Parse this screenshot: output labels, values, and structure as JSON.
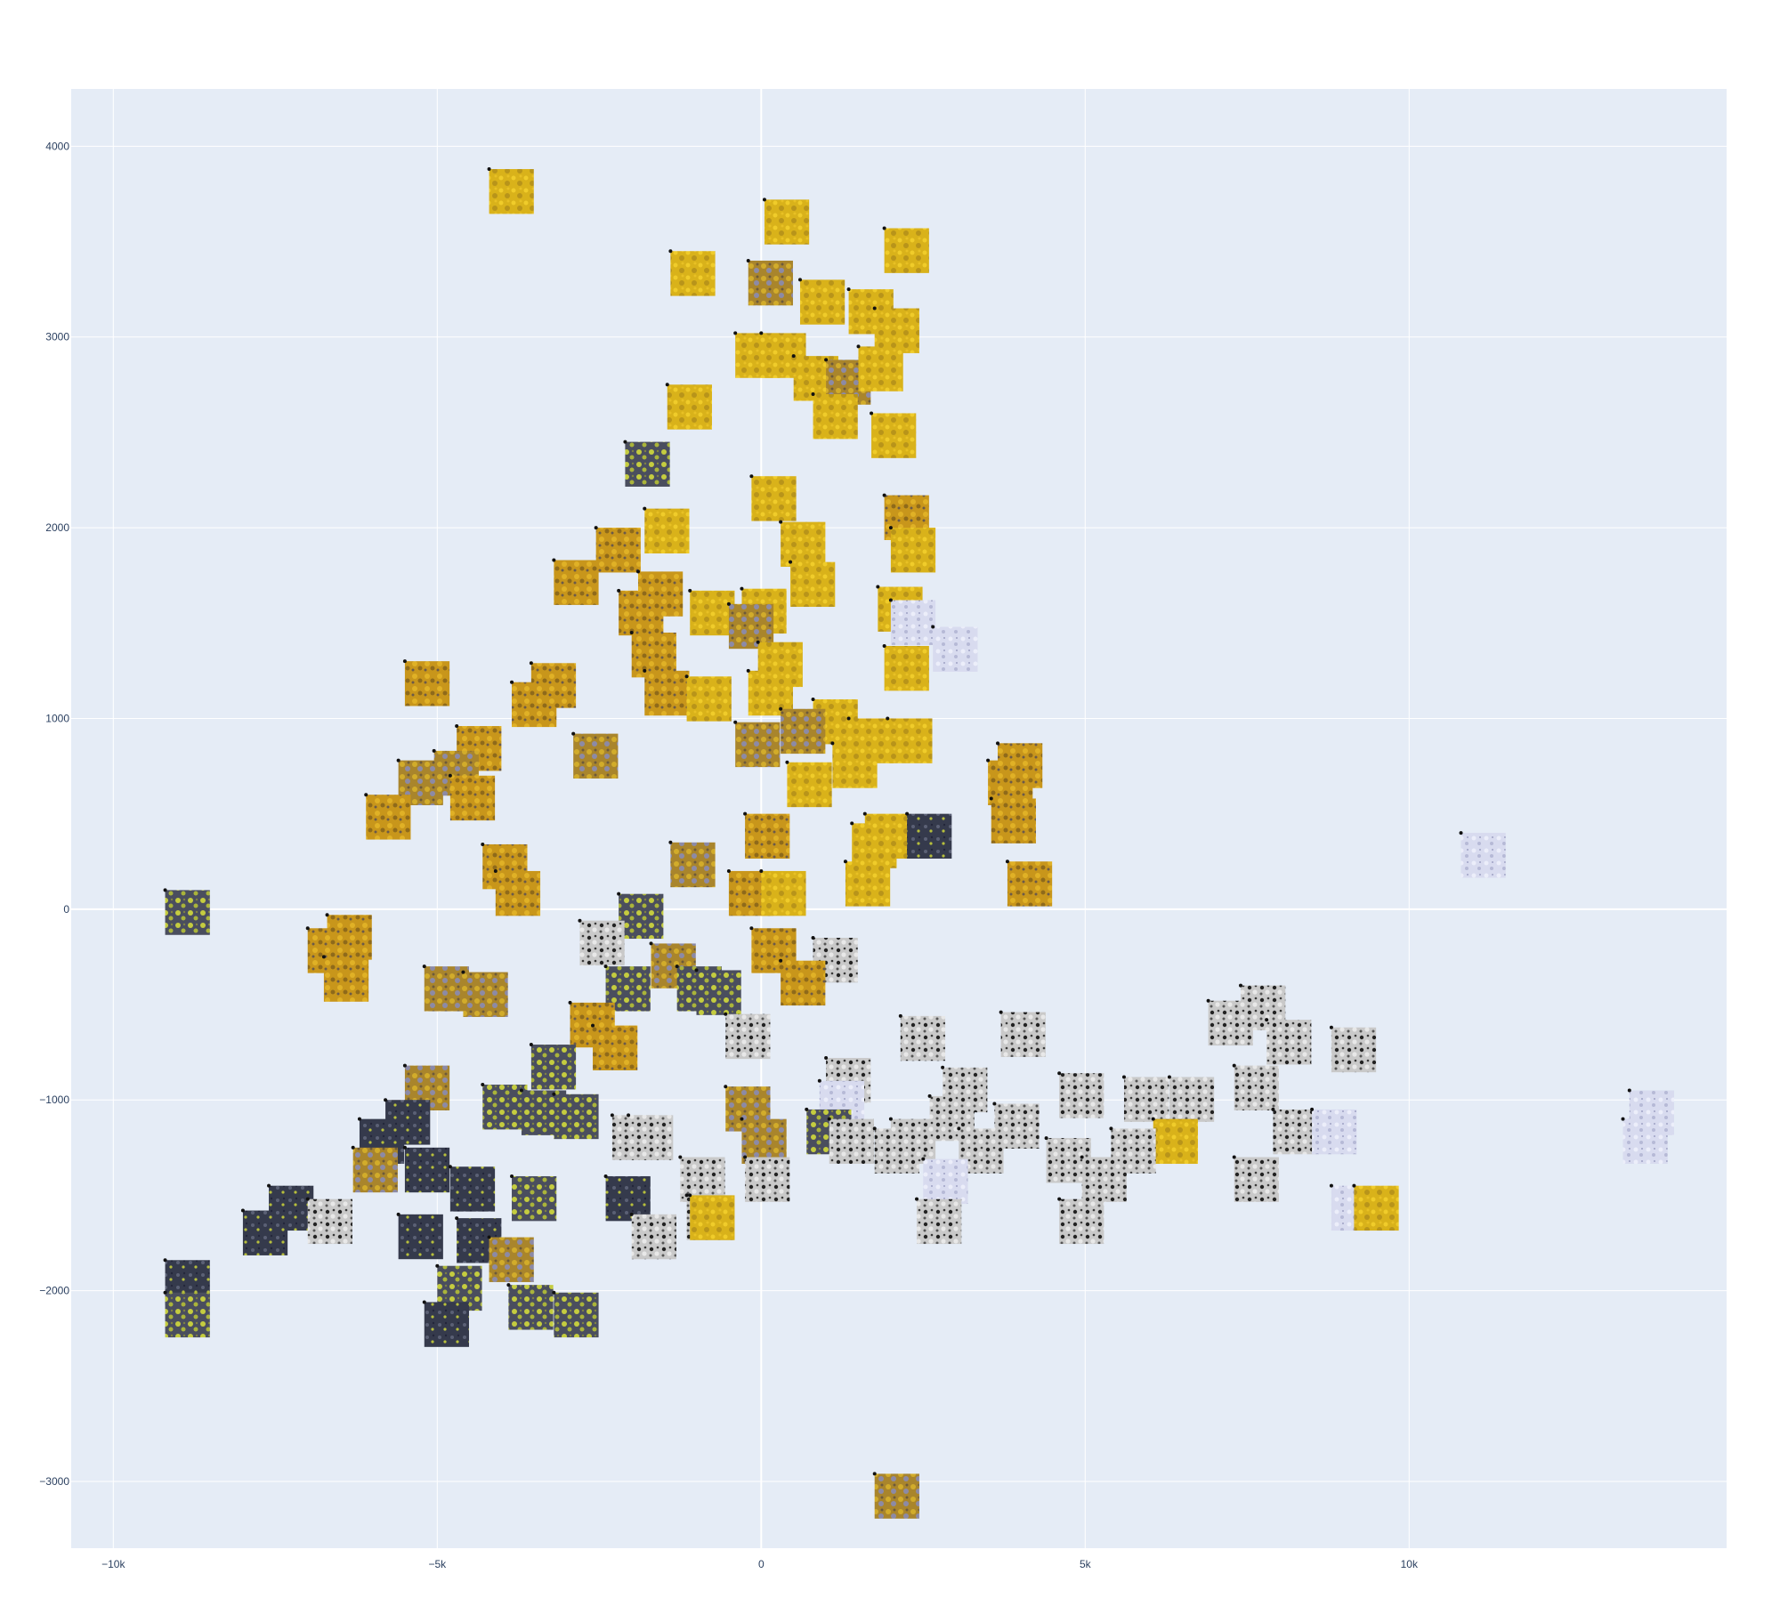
{
  "colors": {
    "plot_background": "#e5ecf6",
    "grid": "#ffffff",
    "tick_text": "#2a3f5f",
    "marker": "#111111",
    "palette": {
      "yellow": "#d9b21a",
      "orange": "#c8961b",
      "ochre": "#a9852c",
      "green": "#b9c23f",
      "dark": "#3b3f52",
      "white": "#c9c9c9",
      "lilac": "#d8dbef"
    }
  },
  "chart_data": {
    "type": "scatter",
    "marker_style": "image-thumbnail",
    "title": "",
    "xlabel": "",
    "ylabel": "",
    "xlim": [
      -10650,
      14900
    ],
    "ylim": [
      -3350,
      4300
    ],
    "grid": true,
    "legend": "none",
    "x_ticks": [
      -10000,
      -5000,
      0,
      5000,
      10000
    ],
    "x_tick_labels": [
      "−10k",
      "−5k",
      "0",
      "5k",
      "10k"
    ],
    "y_ticks": [
      -3000,
      -2000,
      -1000,
      0,
      1000,
      2000,
      3000,
      4000
    ],
    "y_tick_labels": [
      "−3000",
      "−2000",
      "−1000",
      "0",
      "1000",
      "2000",
      "3000",
      "4000"
    ],
    "thumbnail_size_data": {
      "width": 690,
      "height": 235
    },
    "points": [
      {
        "x": -4200,
        "y": 3880,
        "tone": "yellow"
      },
      {
        "x": 50,
        "y": 3720,
        "tone": "yellow"
      },
      {
        "x": 1900,
        "y": 3570,
        "tone": "yellow"
      },
      {
        "x": -1400,
        "y": 3450,
        "tone": "yellow"
      },
      {
        "x": -200,
        "y": 3400,
        "tone": "ochre"
      },
      {
        "x": 600,
        "y": 3300,
        "tone": "yellow"
      },
      {
        "x": 1350,
        "y": 3250,
        "tone": "yellow"
      },
      {
        "x": 1750,
        "y": 3150,
        "tone": "yellow"
      },
      {
        "x": -400,
        "y": 3020,
        "tone": "yellow"
      },
      {
        "x": 0,
        "y": 3020,
        "tone": "yellow"
      },
      {
        "x": 500,
        "y": 2900,
        "tone": "yellow"
      },
      {
        "x": 1000,
        "y": 2880,
        "tone": "ochre"
      },
      {
        "x": 1500,
        "y": 2950,
        "tone": "yellow"
      },
      {
        "x": 800,
        "y": 2700,
        "tone": "yellow"
      },
      {
        "x": -1450,
        "y": 2750,
        "tone": "yellow"
      },
      {
        "x": 1700,
        "y": 2600,
        "tone": "yellow"
      },
      {
        "x": -2100,
        "y": 2450,
        "tone": "green"
      },
      {
        "x": -150,
        "y": 2270,
        "tone": "yellow"
      },
      {
        "x": 1900,
        "y": 2170,
        "tone": "orange"
      },
      {
        "x": -1800,
        "y": 2100,
        "tone": "yellow"
      },
      {
        "x": -2550,
        "y": 2000,
        "tone": "orange"
      },
      {
        "x": 300,
        "y": 2030,
        "tone": "yellow"
      },
      {
        "x": 2000,
        "y": 2000,
        "tone": "yellow"
      },
      {
        "x": -3200,
        "y": 1830,
        "tone": "orange"
      },
      {
        "x": 450,
        "y": 1820,
        "tone": "yellow"
      },
      {
        "x": -1900,
        "y": 1770,
        "tone": "orange"
      },
      {
        "x": -2200,
        "y": 1670,
        "tone": "orange"
      },
      {
        "x": 1800,
        "y": 1690,
        "tone": "yellow"
      },
      {
        "x": -1100,
        "y": 1670,
        "tone": "yellow"
      },
      {
        "x": -300,
        "y": 1680,
        "tone": "yellow"
      },
      {
        "x": -500,
        "y": 1600,
        "tone": "ochre"
      },
      {
        "x": 2000,
        "y": 1620,
        "tone": "lilac"
      },
      {
        "x": -2000,
        "y": 1450,
        "tone": "orange"
      },
      {
        "x": -50,
        "y": 1400,
        "tone": "yellow"
      },
      {
        "x": 2650,
        "y": 1480,
        "tone": "lilac"
      },
      {
        "x": 1900,
        "y": 1380,
        "tone": "yellow"
      },
      {
        "x": -5500,
        "y": 1300,
        "tone": "orange"
      },
      {
        "x": -3550,
        "y": 1290,
        "tone": "orange"
      },
      {
        "x": -1800,
        "y": 1250,
        "tone": "orange"
      },
      {
        "x": -1150,
        "y": 1220,
        "tone": "yellow"
      },
      {
        "x": -3850,
        "y": 1190,
        "tone": "orange"
      },
      {
        "x": -200,
        "y": 1250,
        "tone": "yellow"
      },
      {
        "x": -4700,
        "y": 960,
        "tone": "orange"
      },
      {
        "x": 800,
        "y": 1100,
        "tone": "yellow"
      },
      {
        "x": 300,
        "y": 1050,
        "tone": "ochre"
      },
      {
        "x": 1350,
        "y": 1000,
        "tone": "yellow"
      },
      {
        "x": 1950,
        "y": 1000,
        "tone": "yellow"
      },
      {
        "x": -400,
        "y": 980,
        "tone": "ochre"
      },
      {
        "x": -2900,
        "y": 920,
        "tone": "ochre"
      },
      {
        "x": 1100,
        "y": 870,
        "tone": "yellow"
      },
      {
        "x": -5050,
        "y": 830,
        "tone": "ochre"
      },
      {
        "x": 3650,
        "y": 870,
        "tone": "orange"
      },
      {
        "x": -5600,
        "y": 780,
        "tone": "ochre"
      },
      {
        "x": 400,
        "y": 770,
        "tone": "yellow"
      },
      {
        "x": -4800,
        "y": 700,
        "tone": "orange"
      },
      {
        "x": 3500,
        "y": 780,
        "tone": "orange"
      },
      {
        "x": -6100,
        "y": 600,
        "tone": "orange"
      },
      {
        "x": 1600,
        "y": 500,
        "tone": "yellow"
      },
      {
        "x": 2250,
        "y": 500,
        "tone": "dark"
      },
      {
        "x": -250,
        "y": 500,
        "tone": "orange"
      },
      {
        "x": 1400,
        "y": 450,
        "tone": "yellow"
      },
      {
        "x": 3550,
        "y": 580,
        "tone": "orange"
      },
      {
        "x": -4300,
        "y": 340,
        "tone": "orange"
      },
      {
        "x": -1400,
        "y": 350,
        "tone": "ochre"
      },
      {
        "x": 3800,
        "y": 250,
        "tone": "orange"
      },
      {
        "x": 1300,
        "y": 250,
        "tone": "yellow"
      },
      {
        "x": 10800,
        "y": 400,
        "tone": "lilac"
      },
      {
        "x": -500,
        "y": 200,
        "tone": "orange"
      },
      {
        "x": 0,
        "y": 200,
        "tone": "yellow"
      },
      {
        "x": -4100,
        "y": 200,
        "tone": "orange"
      },
      {
        "x": -9200,
        "y": 100,
        "tone": "green"
      },
      {
        "x": -2200,
        "y": 80,
        "tone": "green"
      },
      {
        "x": -6700,
        "y": -30,
        "tone": "orange"
      },
      {
        "x": -2800,
        "y": -60,
        "tone": "white"
      },
      {
        "x": -7000,
        "y": -100,
        "tone": "orange"
      },
      {
        "x": -150,
        "y": -100,
        "tone": "orange"
      },
      {
        "x": -1700,
        "y": -180,
        "tone": "ochre"
      },
      {
        "x": 800,
        "y": -150,
        "tone": "white"
      },
      {
        "x": -2400,
        "y": -300,
        "tone": "green"
      },
      {
        "x": -5200,
        "y": -300,
        "tone": "ochre"
      },
      {
        "x": -1300,
        "y": -300,
        "tone": "green"
      },
      {
        "x": -6750,
        "y": -250,
        "tone": "orange"
      },
      {
        "x": -1000,
        "y": -320,
        "tone": "green"
      },
      {
        "x": -4600,
        "y": -330,
        "tone": "ochre"
      },
      {
        "x": 300,
        "y": -270,
        "tone": "orange"
      },
      {
        "x": -2950,
        "y": -490,
        "tone": "orange"
      },
      {
        "x": -2600,
        "y": -610,
        "tone": "orange"
      },
      {
        "x": 2150,
        "y": -560,
        "tone": "white"
      },
      {
        "x": 3700,
        "y": -540,
        "tone": "white"
      },
      {
        "x": -550,
        "y": -550,
        "tone": "white"
      },
      {
        "x": 6900,
        "y": -480,
        "tone": "white"
      },
      {
        "x": 7400,
        "y": -400,
        "tone": "white"
      },
      {
        "x": 7800,
        "y": -580,
        "tone": "white"
      },
      {
        "x": 8800,
        "y": -620,
        "tone": "white"
      },
      {
        "x": -3550,
        "y": -710,
        "tone": "green"
      },
      {
        "x": -5500,
        "y": -820,
        "tone": "ochre"
      },
      {
        "x": 1000,
        "y": -780,
        "tone": "white"
      },
      {
        "x": 2800,
        "y": -830,
        "tone": "white"
      },
      {
        "x": 4600,
        "y": -860,
        "tone": "white"
      },
      {
        "x": 7300,
        "y": -820,
        "tone": "white"
      },
      {
        "x": 5600,
        "y": -880,
        "tone": "white"
      },
      {
        "x": 6300,
        "y": -880,
        "tone": "white"
      },
      {
        "x": -4300,
        "y": -920,
        "tone": "green"
      },
      {
        "x": -3700,
        "y": -950,
        "tone": "green"
      },
      {
        "x": -5800,
        "y": -1000,
        "tone": "dark"
      },
      {
        "x": -3200,
        "y": -970,
        "tone": "green"
      },
      {
        "x": -550,
        "y": -930,
        "tone": "ochre"
      },
      {
        "x": 900,
        "y": -900,
        "tone": "lilac"
      },
      {
        "x": 2600,
        "y": -980,
        "tone": "white"
      },
      {
        "x": 3600,
        "y": -1020,
        "tone": "white"
      },
      {
        "x": 7900,
        "y": -1050,
        "tone": "white"
      },
      {
        "x": 8500,
        "y": -1050,
        "tone": "lilac"
      },
      {
        "x": 13400,
        "y": -950,
        "tone": "lilac"
      },
      {
        "x": 13300,
        "y": -1100,
        "tone": "lilac"
      },
      {
        "x": -6200,
        "y": -1100,
        "tone": "dark"
      },
      {
        "x": -2300,
        "y": -1080,
        "tone": "white"
      },
      {
        "x": -2050,
        "y": -1080,
        "tone": "white"
      },
      {
        "x": -300,
        "y": -1100,
        "tone": "ochre"
      },
      {
        "x": 700,
        "y": -1050,
        "tone": "green"
      },
      {
        "x": 1050,
        "y": -1100,
        "tone": "white"
      },
      {
        "x": 1750,
        "y": -1150,
        "tone": "white"
      },
      {
        "x": 2000,
        "y": -1100,
        "tone": "white"
      },
      {
        "x": 3050,
        "y": -1150,
        "tone": "white"
      },
      {
        "x": 6050,
        "y": -1100,
        "tone": "yellow"
      },
      {
        "x": 5400,
        "y": -1150,
        "tone": "white"
      },
      {
        "x": 4400,
        "y": -1200,
        "tone": "white"
      },
      {
        "x": -6300,
        "y": -1250,
        "tone": "ochre"
      },
      {
        "x": -5500,
        "y": -1250,
        "tone": "dark"
      },
      {
        "x": -4800,
        "y": -1350,
        "tone": "dark"
      },
      {
        "x": -1250,
        "y": -1300,
        "tone": "white"
      },
      {
        "x": -250,
        "y": -1300,
        "tone": "white"
      },
      {
        "x": 7300,
        "y": -1300,
        "tone": "white"
      },
      {
        "x": 4950,
        "y": -1300,
        "tone": "white"
      },
      {
        "x": 2500,
        "y": -1310,
        "tone": "lilac"
      },
      {
        "x": -7600,
        "y": -1450,
        "tone": "dark"
      },
      {
        "x": -2400,
        "y": -1400,
        "tone": "dark"
      },
      {
        "x": -3850,
        "y": -1400,
        "tone": "green"
      },
      {
        "x": 8800,
        "y": -1450,
        "tone": "lilac"
      },
      {
        "x": 9150,
        "y": -1450,
        "tone": "yellow"
      },
      {
        "x": -7000,
        "y": -1520,
        "tone": "white"
      },
      {
        "x": -1150,
        "y": -1500,
        "tone": "white"
      },
      {
        "x": -1100,
        "y": -1500,
        "tone": "yellow"
      },
      {
        "x": 2400,
        "y": -1520,
        "tone": "white"
      },
      {
        "x": 4600,
        "y": -1520,
        "tone": "white"
      },
      {
        "x": -8000,
        "y": -1580,
        "tone": "dark"
      },
      {
        "x": -5600,
        "y": -1600,
        "tone": "dark"
      },
      {
        "x": -4700,
        "y": -1620,
        "tone": "dark"
      },
      {
        "x": -2000,
        "y": -1600,
        "tone": "white"
      },
      {
        "x": -4200,
        "y": -1720,
        "tone": "ochre"
      },
      {
        "x": -5000,
        "y": -1870,
        "tone": "green"
      },
      {
        "x": -9200,
        "y": -1840,
        "tone": "dark"
      },
      {
        "x": -3900,
        "y": -1970,
        "tone": "green"
      },
      {
        "x": -3200,
        "y": -2010,
        "tone": "green"
      },
      {
        "x": -9200,
        "y": -2010,
        "tone": "green"
      },
      {
        "x": -5200,
        "y": -2060,
        "tone": "dark"
      },
      {
        "x": 1750,
        "y": -2960,
        "tone": "ochre"
      }
    ]
  }
}
